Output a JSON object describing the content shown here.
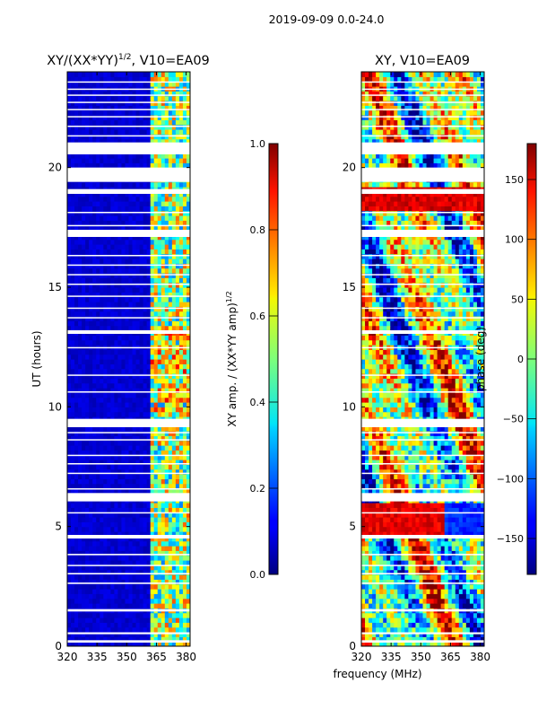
{
  "suptitle": "2019-09-09 0.0-24.0",
  "xlabel_shared": "frequency (MHz)",
  "chart_data": [
    {
      "type": "heatmap",
      "title": "XY/(XX*YY)",
      "title_exp": "1/2",
      "title_suffix": ", V10=EA09",
      "xlabel": "",
      "ylabel": "UT (hours)",
      "xlim": [
        320,
        382
      ],
      "ylim": [
        0,
        24
      ],
      "xticks": [
        "320",
        "335",
        "350",
        "365",
        "380"
      ],
      "xtick_values": [
        320,
        335,
        350,
        365,
        380
      ],
      "yticks": [
        "0",
        "5",
        "10",
        "15",
        "20"
      ],
      "ytick_values": [
        0,
        5,
        10,
        15,
        20
      ],
      "colormap": "jet",
      "colorbar": {
        "label_main": "XY amp. / (XX*YY amp)",
        "label_exp": "1/2",
        "range": [
          0.0,
          1.0
        ],
        "ticks": [
          "0.0",
          "0.2",
          "0.4",
          "0.6",
          "0.8",
          "1.0"
        ],
        "tick_values": [
          0.0,
          0.2,
          0.4,
          0.6,
          0.8,
          1.0
        ]
      }
    },
    {
      "type": "heatmap",
      "title": "XY, V10=EA09",
      "xlabel": "frequency (MHz)",
      "ylabel": "",
      "xlim": [
        320,
        382
      ],
      "ylim": [
        0,
        24
      ],
      "xticks": [
        "320",
        "335",
        "350",
        "365",
        "380"
      ],
      "xtick_values": [
        320,
        335,
        350,
        365,
        380
      ],
      "yticks": [
        "0",
        "5",
        "10",
        "15",
        "20"
      ],
      "ytick_values": [
        0,
        5,
        10,
        15,
        20
      ],
      "colormap": "jet",
      "colorbar": {
        "label_main": "phase (deg)",
        "range": [
          -180,
          180
        ],
        "ticks": [
          "−150",
          "−100",
          "−50",
          "0",
          "50",
          "100",
          "150"
        ],
        "tick_values": [
          -150,
          -100,
          -50,
          0,
          50,
          100,
          150
        ]
      }
    }
  ],
  "flagged_ut_hours": [
    [
      0.15,
      0.25
    ],
    [
      0.5,
      0.58
    ],
    [
      1.45,
      1.55
    ],
    [
      2.6,
      2.66
    ],
    [
      3.0,
      3.06
    ],
    [
      3.35,
      3.4
    ],
    [
      3.8,
      3.86
    ],
    [
      4.5,
      4.65
    ],
    [
      5.55,
      5.6
    ],
    [
      6.05,
      6.4
    ],
    [
      6.55,
      6.6
    ],
    [
      7.2,
      7.25
    ],
    [
      7.6,
      7.65
    ],
    [
      7.95,
      8.0
    ],
    [
      8.6,
      8.65
    ],
    [
      8.9,
      8.95
    ],
    [
      9.15,
      9.5
    ],
    [
      10.6,
      10.65
    ],
    [
      11.3,
      11.35
    ],
    [
      12.45,
      12.5
    ],
    [
      13.05,
      13.2
    ],
    [
      13.7,
      13.75
    ],
    [
      14.1,
      14.15
    ],
    [
      14.6,
      14.65
    ],
    [
      15.1,
      15.15
    ],
    [
      15.5,
      15.55
    ],
    [
      15.9,
      15.95
    ],
    [
      16.3,
      16.35
    ],
    [
      17.1,
      17.4
    ],
    [
      17.55,
      17.6
    ],
    [
      18.1,
      18.15
    ],
    [
      18.9,
      19.1
    ],
    [
      19.4,
      20.0
    ],
    [
      20.55,
      21.05
    ],
    [
      21.3,
      21.35
    ],
    [
      21.7,
      21.75
    ],
    [
      22.1,
      22.15
    ],
    [
      22.4,
      22.45
    ],
    [
      22.7,
      22.75
    ],
    [
      23.0,
      23.05
    ],
    [
      23.25,
      23.3
    ],
    [
      23.55,
      23.6
    ]
  ]
}
